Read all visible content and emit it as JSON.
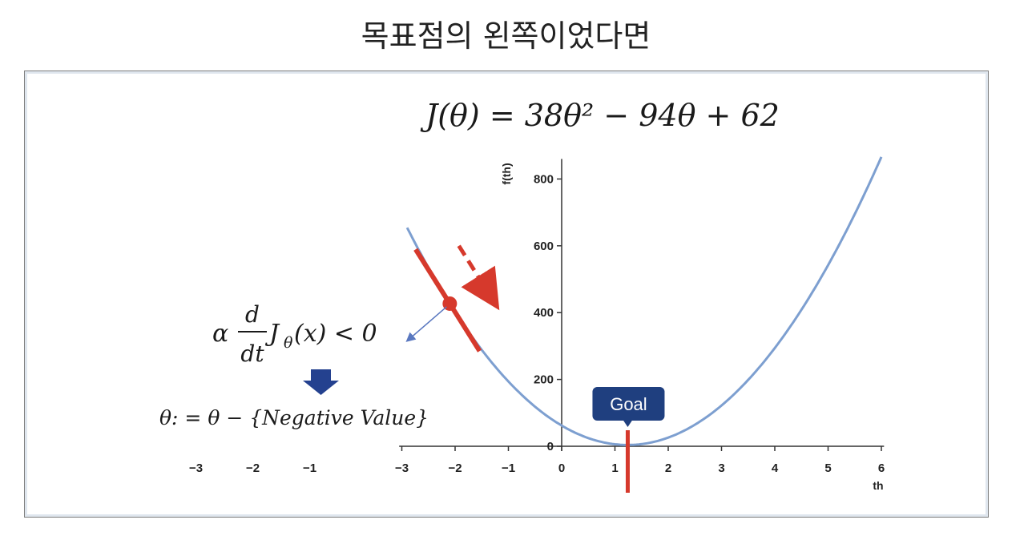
{
  "slide_title": "목표점의 왼쪽이었다면",
  "chart_data": {
    "type": "line",
    "title": "J(θ) = 38θ² − 94θ + 62",
    "function": {
      "a": 38,
      "b": -94,
      "c": 62
    },
    "xlabel": "th",
    "ylabel": "f(th)",
    "xlim": [
      -2.9,
      6
    ],
    "ylim": [
      0,
      860
    ],
    "x_ticks": [
      -3,
      -2,
      -1,
      0,
      1,
      2,
      3,
      4,
      5,
      6
    ],
    "y_ticks": [
      0,
      200,
      400,
      600,
      800
    ],
    "extra_x_ticks": [
      -3,
      -2,
      -1
    ],
    "current_point": {
      "x": -2.1
    },
    "goal": {
      "x": 1.24,
      "label": "Goal"
    },
    "colors": {
      "curve": "#7d9fd0",
      "marker": "#d6392c",
      "goal_box": "#1f3f7f",
      "arrow": "#24418f"
    }
  },
  "annotations": {
    "derivative": {
      "alpha": "α",
      "num": "d",
      "den": "dt",
      "rest": "J",
      "sub": "θ",
      "tail": "(x) < 0"
    },
    "update_rule": "θ: = θ − {Negative Value}"
  }
}
